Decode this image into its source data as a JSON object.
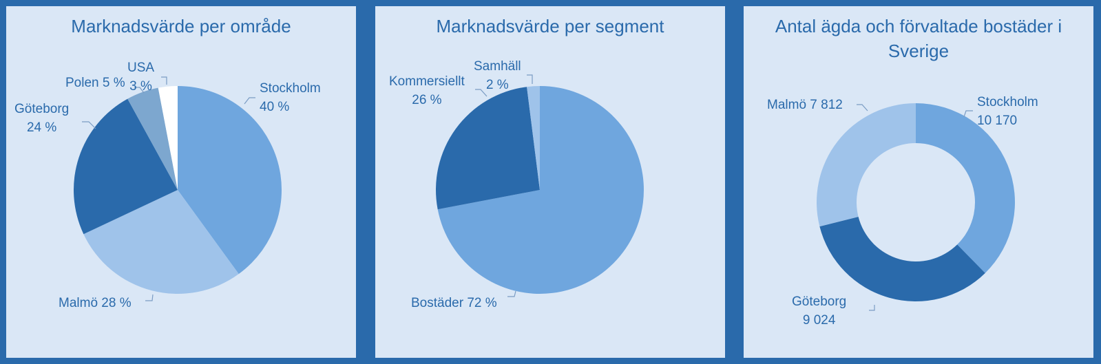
{
  "chart_data": [
    {
      "type": "pie",
      "title": "Marknadsvärde per område",
      "categories": [
        "Stockholm",
        "Malmö",
        "Göteborg",
        "Polen",
        "USA"
      ],
      "values": [
        40,
        28,
        24,
        5,
        3
      ],
      "value_labels": [
        "40 %",
        "28 %",
        "24 %",
        "5 %",
        "3 %"
      ],
      "colors": [
        "#6fa6de",
        "#9fc3ea",
        "#2a6aab",
        "#7da7cf",
        "#ffffff"
      ]
    },
    {
      "type": "pie",
      "title": "Marknadsvärde per segment",
      "categories": [
        "Bostäder",
        "Kommersiellt",
        "Samhäll"
      ],
      "values": [
        72,
        26,
        2
      ],
      "value_labels": [
        "72 %",
        "26 %",
        "2 %"
      ],
      "colors": [
        "#6fa6de",
        "#2a6aab",
        "#9fc3ea"
      ]
    },
    {
      "type": "pie",
      "subtype": "donut",
      "title": "Antal ägda och förvaltade bostäder i Sverige",
      "categories": [
        "Stockholm",
        "Göteborg",
        "Malmö"
      ],
      "values": [
        10170,
        9024,
        7812
      ],
      "value_labels": [
        "10 170",
        "9 024",
        "7 812"
      ],
      "colors": [
        "#6fa6de",
        "#2a6aab",
        "#9fc3ea"
      ]
    }
  ]
}
